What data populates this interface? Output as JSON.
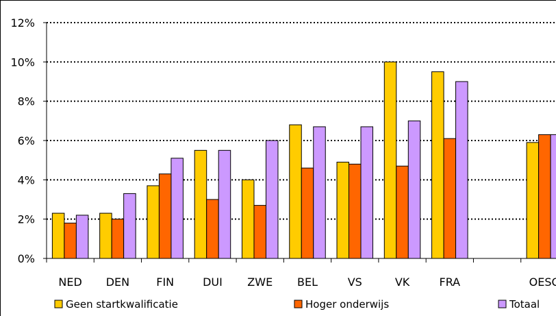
{
  "chart_data": {
    "type": "bar",
    "categories": [
      "NED",
      "DEN",
      "FIN",
      "DUI",
      "ZWE",
      "BEL",
      "VS",
      "VK",
      "FRA",
      "",
      "OESO"
    ],
    "series": [
      {
        "name": "Geen startkwalificatie",
        "color": "#FFCC00",
        "values": [
          2.3,
          2.3,
          3.7,
          5.5,
          4.0,
          6.8,
          4.9,
          10.0,
          9.5,
          null,
          5.9
        ]
      },
      {
        "name": "Hoger onderwijs",
        "color": "#FF6600",
        "values": [
          1.8,
          2.0,
          4.3,
          3.0,
          2.7,
          4.6,
          4.8,
          4.7,
          6.1,
          null,
          6.3
        ]
      },
      {
        "name": "Totaal",
        "color": "#CC99FF",
        "values": [
          2.2,
          3.3,
          5.1,
          5.5,
          6.0,
          6.7,
          6.7,
          7.0,
          9.0,
          null,
          6.3
        ]
      }
    ],
    "y_ticks": [
      "0%",
      "2%",
      "4%",
      "6%",
      "8%",
      "10%",
      "12%"
    ],
    "ylim": [
      0,
      12
    ],
    "y_unit": "%",
    "grid": "dotted horizontal",
    "legend_position": "bottom"
  }
}
